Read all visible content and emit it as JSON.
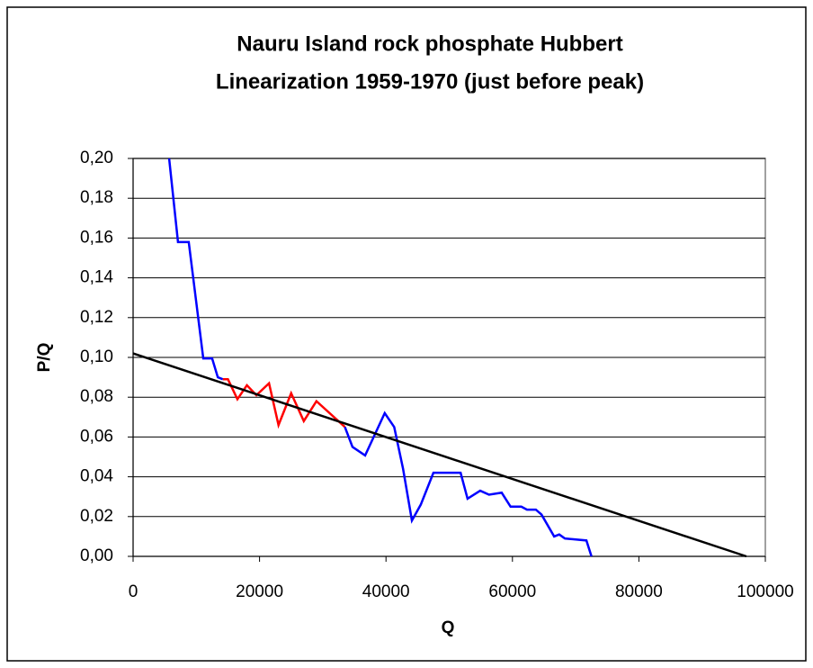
{
  "chart_data": {
    "type": "line",
    "title": [
      "Nauru Island rock phosphate Hubbert",
      "Linearization 1959-1970 (just before peak)"
    ],
    "xlabel": "Q",
    "ylabel": "P/Q",
    "xlim": [
      0,
      100000
    ],
    "xticks": [
      0,
      20000,
      40000,
      60000,
      80000,
      100000
    ],
    "ylim": [
      0,
      0.2
    ],
    "yticks": [
      {
        "value": 0,
        "label": "0,00"
      },
      {
        "value": 0.02,
        "label": "0,02"
      },
      {
        "value": 0.04,
        "label": "0,04"
      },
      {
        "value": 0.06,
        "label": "0,06"
      },
      {
        "value": 0.08,
        "label": "0,08"
      },
      {
        "value": 0.1,
        "label": "0,10"
      },
      {
        "value": 0.12,
        "label": "0,12"
      },
      {
        "value": 0.14,
        "label": "0,14"
      },
      {
        "value": 0.16,
        "label": "0,16"
      },
      {
        "value": 0.18,
        "label": "0,18"
      },
      {
        "value": 0.2,
        "label": "0,20"
      }
    ],
    "grid": true,
    "series": [
      {
        "color": "#0000ff",
        "x": [
          5700,
          7100,
          8800,
          11100,
          12500,
          13400,
          14200
        ],
        "values": [
          0.2,
          0.158,
          0.158,
          0.0995,
          0.0995,
          0.09,
          0.089
        ]
      },
      {
        "color": "#ff0000",
        "x": [
          14200,
          15000,
          16500,
          18000,
          19500,
          21500,
          23000,
          25000,
          27000,
          29000,
          33500
        ],
        "values": [
          0.089,
          0.089,
          0.079,
          0.086,
          0.081,
          0.087,
          0.066,
          0.082,
          0.068,
          0.078,
          0.065
        ]
      },
      {
        "color": "#0000ff",
        "x": [
          33500,
          34700,
          36700,
          39800,
          41300,
          42700,
          44100,
          45500,
          47500,
          51800,
          52900,
          54900,
          56300,
          58300,
          59700,
          61400,
          62300,
          63700,
          64600,
          66600,
          67400,
          68300,
          71700,
          72500
        ],
        "values": [
          0.065,
          0.055,
          0.0507,
          0.072,
          0.065,
          0.044,
          0.018,
          0.026,
          0.042,
          0.042,
          0.029,
          0.033,
          0.031,
          0.032,
          0.025,
          0.025,
          0.0235,
          0.0235,
          0.021,
          0.01,
          0.011,
          0.009,
          0.008,
          0
        ]
      },
      {
        "color": "#000000",
        "x": [
          0,
          97000
        ],
        "values": [
          0.102,
          0
        ]
      }
    ]
  }
}
